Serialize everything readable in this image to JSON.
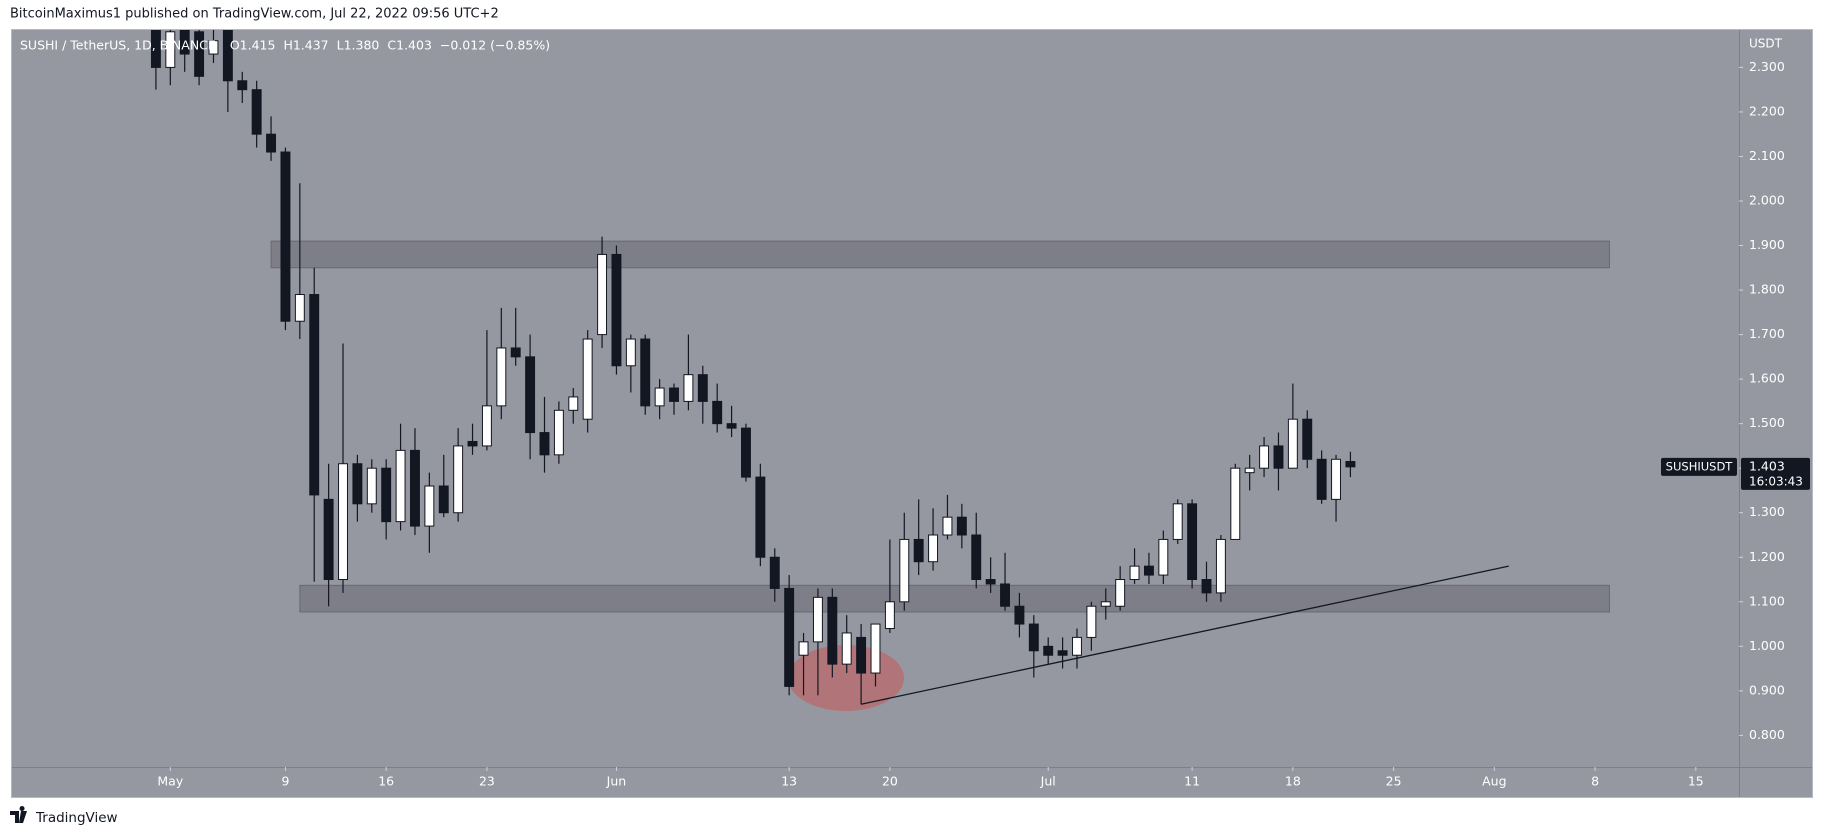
{
  "publisher": "BitcoinMaximus1 published on TradingView.com, Jul 22, 2022 09:56 UTC+2",
  "footer": "TradingView",
  "chart_data": {
    "type": "candlestick",
    "title": "SUSHI / TetherUS, 1D, BINANCE",
    "header_values": [
      "O1.415",
      "H1.437",
      "L1.380",
      "C1.403",
      "−0.012 (−0.85%)"
    ],
    "symbol": "SUSHIUSDT",
    "countdown": "16:03:43",
    "y_unit": "USDT",
    "bull_color": "#ffffff",
    "bear_color": "#131722",
    "grid": false,
    "x": [
      "2022-04-30",
      "2022-05-01",
      "2022-05-02",
      "2022-05-03",
      "2022-05-04",
      "2022-05-05",
      "2022-05-06",
      "2022-05-07",
      "2022-05-08",
      "2022-05-09",
      "2022-05-10",
      "2022-05-11",
      "2022-05-12",
      "2022-05-13",
      "2022-05-14",
      "2022-05-15",
      "2022-05-16",
      "2022-05-17",
      "2022-05-18",
      "2022-05-19",
      "2022-05-20",
      "2022-05-21",
      "2022-05-22",
      "2022-05-23",
      "2022-05-24",
      "2022-05-25",
      "2022-05-26",
      "2022-05-27",
      "2022-05-28",
      "2022-05-29",
      "2022-05-30",
      "2022-05-31",
      "2022-06-01",
      "2022-06-02",
      "2022-06-03",
      "2022-06-04",
      "2022-06-05",
      "2022-06-06",
      "2022-06-07",
      "2022-06-08",
      "2022-06-09",
      "2022-06-10",
      "2022-06-11",
      "2022-06-12",
      "2022-06-13",
      "2022-06-14",
      "2022-06-15",
      "2022-06-16",
      "2022-06-17",
      "2022-06-18",
      "2022-06-19",
      "2022-06-20",
      "2022-06-21",
      "2022-06-22",
      "2022-06-23",
      "2022-06-24",
      "2022-06-25",
      "2022-06-26",
      "2022-06-27",
      "2022-06-28",
      "2022-06-29",
      "2022-06-30",
      "2022-07-01",
      "2022-07-02",
      "2022-07-03",
      "2022-07-04",
      "2022-07-05",
      "2022-07-06",
      "2022-07-07",
      "2022-07-08",
      "2022-07-09",
      "2022-07-10",
      "2022-07-11",
      "2022-07-12",
      "2022-07-13",
      "2022-07-14",
      "2022-07-15",
      "2022-07-16",
      "2022-07-17",
      "2022-07-18",
      "2022-07-19",
      "2022-07-20",
      "2022-07-21",
      "2022-07-22"
    ],
    "open": [
      2.4,
      2.3,
      2.4,
      2.38,
      2.33,
      2.4,
      2.27,
      2.25,
      2.15,
      2.11,
      1.73,
      1.79,
      1.33,
      1.15,
      1.41,
      1.32,
      1.4,
      1.28,
      1.44,
      1.27,
      1.36,
      1.3,
      1.46,
      1.45,
      1.54,
      1.67,
      1.65,
      1.48,
      1.43,
      1.53,
      1.51,
      1.7,
      1.88,
      1.63,
      1.69,
      1.54,
      1.58,
      1.55,
      1.61,
      1.55,
      1.5,
      1.49,
      1.38,
      1.2,
      1.13,
      0.98,
      1.01,
      1.11,
      0.96,
      1.02,
      0.94,
      1.04,
      1.1,
      1.24,
      1.19,
      1.25,
      1.29,
      1.25,
      1.15,
      1.14,
      1.09,
      1.05,
      1.0,
      0.99,
      0.98,
      1.02,
      1.09,
      1.09,
      1.15,
      1.18,
      1.16,
      1.24,
      1.32,
      1.15,
      1.12,
      1.24,
      1.39,
      1.4,
      1.45,
      1.4,
      1.51,
      1.42,
      1.33,
      1.415
    ],
    "high": [
      2.45,
      2.45,
      2.45,
      2.42,
      2.4,
      2.45,
      2.29,
      2.27,
      2.19,
      2.12,
      2.04,
      1.85,
      1.41,
      1.68,
      1.43,
      1.42,
      1.42,
      1.5,
      1.49,
      1.39,
      1.43,
      1.49,
      1.5,
      1.71,
      1.76,
      1.76,
      1.7,
      1.56,
      1.55,
      1.58,
      1.71,
      1.92,
      1.9,
      1.7,
      1.7,
      1.6,
      1.59,
      1.7,
      1.63,
      1.59,
      1.54,
      1.5,
      1.41,
      1.22,
      1.16,
      1.03,
      1.13,
      1.13,
      1.07,
      1.05,
      1.05,
      1.24,
      1.3,
      1.33,
      1.31,
      1.34,
      1.32,
      1.3,
      1.2,
      1.21,
      1.12,
      1.07,
      1.02,
      1.02,
      1.04,
      1.1,
      1.13,
      1.18,
      1.22,
      1.21,
      1.26,
      1.33,
      1.33,
      1.19,
      1.25,
      1.41,
      1.43,
      1.47,
      1.48,
      1.59,
      1.53,
      1.44,
      1.43,
      1.437
    ],
    "low": [
      2.25,
      2.26,
      2.29,
      2.26,
      2.31,
      2.2,
      2.22,
      2.12,
      2.09,
      1.71,
      1.69,
      1.145,
      1.09,
      1.12,
      1.28,
      1.3,
      1.24,
      1.26,
      1.25,
      1.21,
      1.29,
      1.28,
      1.43,
      1.44,
      1.51,
      1.63,
      1.42,
      1.39,
      1.41,
      1.5,
      1.48,
      1.67,
      1.61,
      1.57,
      1.52,
      1.51,
      1.52,
      1.53,
      1.5,
      1.48,
      1.47,
      1.37,
      1.18,
      1.1,
      0.89,
      0.89,
      0.89,
      0.93,
      0.94,
      0.87,
      0.91,
      1.03,
      1.08,
      1.16,
      1.17,
      1.24,
      1.22,
      1.13,
      1.12,
      1.08,
      1.02,
      0.93,
      0.96,
      0.95,
      0.95,
      0.99,
      1.06,
      1.08,
      1.14,
      1.14,
      1.14,
      1.23,
      1.13,
      1.1,
      1.1,
      1.24,
      1.35,
      1.38,
      1.35,
      1.4,
      1.4,
      1.32,
      1.28,
      1.38
    ],
    "close": [
      2.3,
      2.38,
      2.33,
      2.28,
      2.36,
      2.27,
      2.25,
      2.15,
      2.11,
      1.73,
      1.79,
      1.34,
      1.15,
      1.41,
      1.32,
      1.4,
      1.28,
      1.44,
      1.27,
      1.36,
      1.3,
      1.45,
      1.45,
      1.54,
      1.67,
      1.65,
      1.48,
      1.43,
      1.53,
      1.56,
      1.69,
      1.88,
      1.63,
      1.69,
      1.54,
      1.58,
      1.55,
      1.61,
      1.55,
      1.5,
      1.49,
      1.38,
      1.2,
      1.13,
      0.91,
      1.01,
      1.11,
      0.96,
      1.03,
      0.94,
      1.05,
      1.1,
      1.24,
      1.19,
      1.25,
      1.29,
      1.25,
      1.15,
      1.14,
      1.09,
      1.05,
      0.99,
      0.98,
      0.98,
      1.02,
      1.09,
      1.1,
      1.15,
      1.18,
      1.16,
      1.24,
      1.32,
      1.15,
      1.12,
      1.24,
      1.4,
      1.4,
      1.45,
      1.4,
      1.51,
      1.42,
      1.33,
      1.42,
      1.403
    ],
    "xlim": [
      "2022-04-20",
      "2022-08-18"
    ],
    "xticks": [
      {
        "value": "2022-05-01",
        "label": "May"
      },
      {
        "value": "2022-05-09",
        "label": "9"
      },
      {
        "value": "2022-05-16",
        "label": "16"
      },
      {
        "value": "2022-05-23",
        "label": "23"
      },
      {
        "value": "2022-06-01",
        "label": "Jun"
      },
      {
        "value": "2022-06-13",
        "label": "13"
      },
      {
        "value": "2022-06-20",
        "label": "20"
      },
      {
        "value": "2022-07-01",
        "label": "Jul"
      },
      {
        "value": "2022-07-11",
        "label": "11"
      },
      {
        "value": "2022-07-18",
        "label": "18"
      },
      {
        "value": "2022-07-25",
        "label": "25"
      },
      {
        "value": "2022-08-01",
        "label": "Aug"
      },
      {
        "value": "2022-08-08",
        "label": "8"
      },
      {
        "value": "2022-08-15",
        "label": "15"
      }
    ],
    "ylim": [
      0.729,
      2.384
    ],
    "yticks": [
      {
        "value": 2.3,
        "label": "2.300"
      },
      {
        "value": 2.2,
        "label": "2.200"
      },
      {
        "value": 2.1,
        "label": "2.100"
      },
      {
        "value": 2.0,
        "label": "2.000"
      },
      {
        "value": 1.9,
        "label": "1.900"
      },
      {
        "value": 1.8,
        "label": "1.800"
      },
      {
        "value": 1.7,
        "label": "1.700"
      },
      {
        "value": 1.6,
        "label": "1.600"
      },
      {
        "value": 1.5,
        "label": "1.500"
      },
      {
        "value": 1.4,
        "label": "1.400"
      },
      {
        "value": 1.3,
        "label": "1.300"
      },
      {
        "value": 1.2,
        "label": "1.200"
      },
      {
        "value": 1.1,
        "label": "1.100"
      },
      {
        "value": 1.0,
        "label": "1.000"
      },
      {
        "value": 0.9,
        "label": "0.900"
      },
      {
        "value": 0.8,
        "label": "0.800"
      }
    ],
    "zones": [
      {
        "start": "2022-05-08",
        "end": "2022-08-09",
        "from": 1.85,
        "to": 1.91
      },
      {
        "start": "2022-05-10",
        "end": "2022-08-09",
        "from": 1.077,
        "to": 1.137
      }
    ],
    "trendline": {
      "x": [
        "2022-06-18",
        "2022-08-02"
      ],
      "y": [
        0.87,
        1.18
      ]
    }
  }
}
